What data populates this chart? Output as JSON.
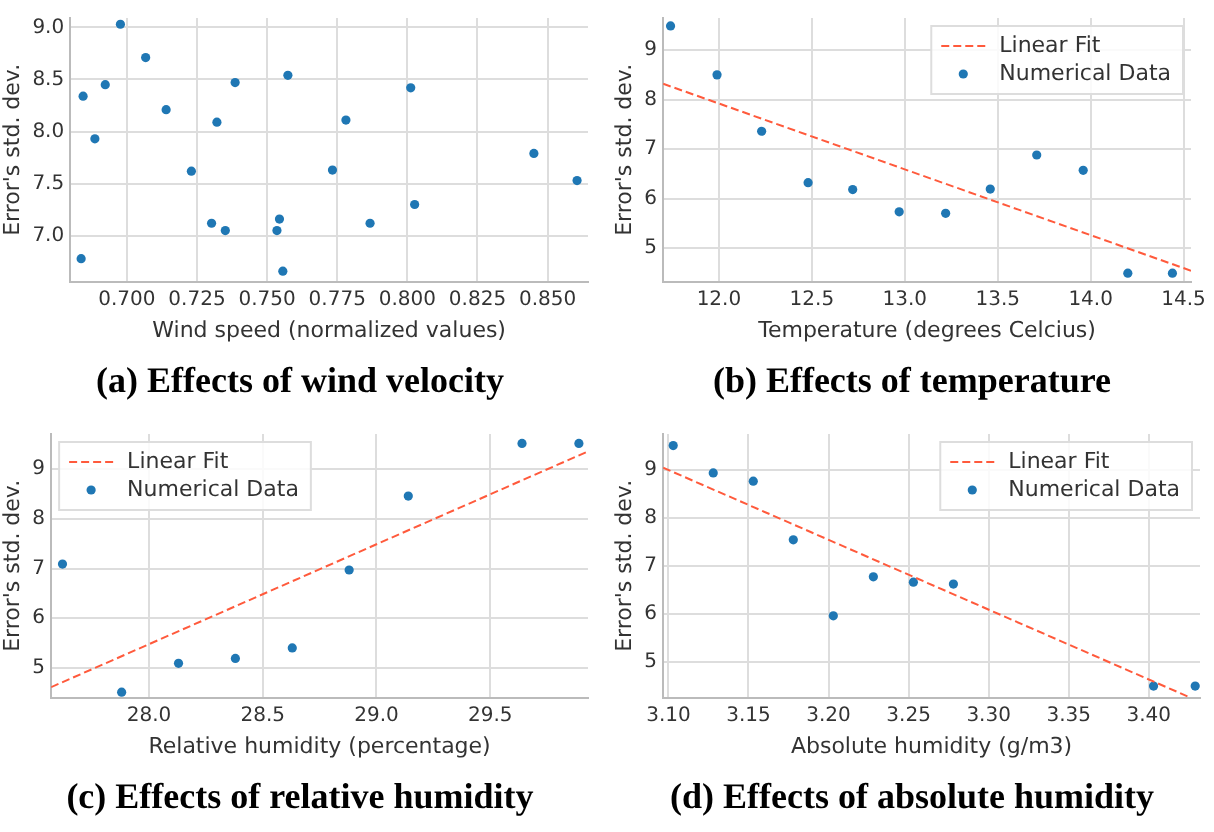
{
  "chart_data": [
    {
      "type": "scatter",
      "title": "(a) Effects of wind velocity",
      "xlabel": "Wind speed (normalized values)",
      "ylabel": "Error's std. dev.",
      "xlim": [
        0.6798,
        0.8644
      ],
      "ylim": [
        6.56,
        9.09
      ],
      "xticks": [
        {
          "value": 0.7,
          "label": "0.700"
        },
        0.725,
        {
          "value": 0.75,
          "label": "0.750"
        },
        0.775,
        {
          "value": 0.8,
          "label": "0.800"
        },
        0.825,
        {
          "value": 0.85,
          "label": "0.850"
        }
      ],
      "yticks": [
        {
          "value": 7,
          "label": "7.0"
        },
        7.5,
        {
          "value": 8,
          "label": "8.0"
        },
        8.5,
        {
          "value": 9,
          "label": "9.0"
        }
      ],
      "grid": true,
      "marker": "circle",
      "series": [
        {
          "color": "#1f77b4",
          "x": [
            0.6844,
            0.6837,
            0.6886,
            0.6923,
            0.6977,
            0.7067,
            0.714,
            0.723,
            0.7302,
            0.7321,
            0.7351,
            0.7386,
            0.7535,
            0.7544,
            0.7556,
            0.7574,
            0.7733,
            0.7781,
            0.7867,
            0.8012,
            0.8026,
            0.8451,
            0.8605
          ],
          "values": [
            8.34,
            6.78,
            7.93,
            8.45,
            9.03,
            8.71,
            8.21,
            7.62,
            7.12,
            8.09,
            7.05,
            8.47,
            7.05,
            7.16,
            6.66,
            8.54,
            7.63,
            8.11,
            7.12,
            8.42,
            7.3,
            7.79,
            7.53
          ]
        }
      ]
    },
    {
      "type": "scatter",
      "title": "(b) Effects of temperature",
      "xlabel": "Temperature (degrees Celcius)",
      "ylabel": "Error's std. dev.",
      "xlim": [
        11.7,
        14.54
      ],
      "ylim": [
        4.32,
        9.65
      ],
      "xticks": [
        {
          "value": 12,
          "label": "12.0"
        },
        12.5,
        {
          "value": 13,
          "label": "13.0"
        },
        13.5,
        {
          "value": 14,
          "label": "14.0"
        },
        14.5
      ],
      "yticks": [
        5,
        6,
        7,
        8,
        9
      ],
      "grid": true,
      "legend": "top right",
      "marker": "circle",
      "series": [
        {
          "name": "Linear Fit",
          "type": "line",
          "color": "#ff5a3c",
          "line_style": "dashed",
          "marker": "none",
          "x": [
            11.7,
            14.54
          ],
          "values": [
            8.32,
            4.54
          ]
        },
        {
          "name": "Numerical Data",
          "color": "#1f77b4",
          "x": [
            11.74,
            11.99,
            12.23,
            12.48,
            12.72,
            12.97,
            13.22,
            13.46,
            13.71,
            13.96,
            14.2,
            14.44
          ],
          "values": [
            9.49,
            8.5,
            7.36,
            6.32,
            6.18,
            5.73,
            5.7,
            6.19,
            6.88,
            6.57,
            4.49,
            4.49
          ]
        }
      ]
    },
    {
      "type": "scatter",
      "title": "(c) Effects of relative humidity",
      "xlabel": "Relative humidity (percentage)",
      "ylabel": "Error's std. dev.",
      "xlim": [
        27.57,
        29.93
      ],
      "ylim": [
        4.4,
        9.71
      ],
      "xticks": [
        {
          "value": 28,
          "label": "28.0"
        },
        28.5,
        {
          "value": 29,
          "label": "29.0"
        },
        29.5
      ],
      "yticks": [
        5,
        6,
        7,
        8,
        9
      ],
      "grid": true,
      "legend": "top left",
      "marker": "circle",
      "series": [
        {
          "name": "Linear Fit",
          "type": "line",
          "color": "#ff5a3c",
          "line_style": "dashed",
          "marker": "none",
          "x": [
            27.57,
            29.93
          ],
          "values": [
            4.61,
            9.36
          ]
        },
        {
          "name": "Numerical Data",
          "color": "#1f77b4",
          "x": [
            27.62,
            27.88,
            28.13,
            28.38,
            28.63,
            28.88,
            29.14,
            29.64,
            29.89
          ],
          "values": [
            7.09,
            4.51,
            5.09,
            5.19,
            5.4,
            6.97,
            8.46,
            9.52,
            9.52
          ]
        }
      ]
    },
    {
      "type": "scatter",
      "title": "(d) Effects of absolute humidity",
      "xlabel": "Absolute humidity (g/m3)",
      "ylabel": "Error's std. dev.",
      "xlim": [
        3.0967,
        3.432
      ],
      "ylim": [
        4.26,
        9.74
      ],
      "xticks": [
        {
          "value": 3.1,
          "label": "3.10"
        },
        3.15,
        {
          "value": 3.2,
          "label": "3.20"
        },
        3.25,
        {
          "value": 3.3,
          "label": "3.30"
        },
        3.35,
        {
          "value": 3.4,
          "label": "3.40"
        }
      ],
      "yticks": [
        5,
        6,
        7,
        8,
        9
      ],
      "grid": true,
      "legend": "top right",
      "marker": "circle",
      "series": [
        {
          "name": "Linear Fit",
          "type": "line",
          "color": "#ff5a3c",
          "line_style": "dashed",
          "marker": "none",
          "x": [
            3.0967,
            3.426
          ],
          "values": [
            9.04,
            4.26
          ]
        },
        {
          "name": "Numerical Data",
          "color": "#1f77b4",
          "x": [
            3.103,
            3.128,
            3.153,
            3.178,
            3.203,
            3.228,
            3.253,
            3.278,
            3.403,
            3.429
          ],
          "values": [
            9.5,
            8.93,
            8.76,
            7.54,
            5.96,
            6.77,
            6.66,
            6.62,
            4.5,
            4.5
          ]
        }
      ]
    }
  ]
}
